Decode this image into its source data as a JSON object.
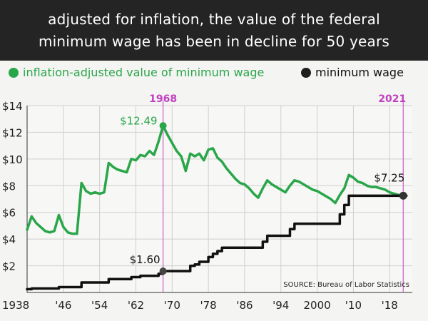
{
  "title_lines": [
    "adjusted for inflation, the value of the federal",
    "minimum wage has been in decline for 50 years"
  ],
  "legend": [
    {
      "label": "inflation-adjusted value of minimum wage",
      "color": "#2aa64a"
    },
    {
      "label": "minimum wage",
      "color": "#1e1e1e"
    }
  ],
  "colors": {
    "green": "#2aa64a",
    "black": "#111111",
    "marker_line": "#d070d0",
    "marker_text": "#c040c0",
    "grid": "#cfcfcf"
  },
  "source": "SOURCE: Bureau of Labor Statistics",
  "chart_data": {
    "type": "line",
    "xlim": [
      1938,
      2023
    ],
    "ylim": [
      0,
      14
    ],
    "y_ticks": [
      2,
      4,
      6,
      8,
      10,
      12,
      14
    ],
    "y_tick_labels": [
      "$2",
      "$4",
      "$6",
      "$8",
      "$10",
      "$12",
      "$14"
    ],
    "x_ticks": [
      1938,
      1946,
      1954,
      1962,
      1970,
      1978,
      1986,
      1994,
      2002,
      2010,
      2018
    ],
    "x_tick_labels": [
      "1938",
      "'46",
      "'54",
      "'62",
      "'70",
      "'78",
      "'86",
      "'94",
      "2000",
      "'10",
      "'18"
    ],
    "grid": true,
    "series": [
      {
        "name": "inflation-adjusted value of minimum wage",
        "color": "#2aa64a",
        "points": [
          [
            1938,
            4.7
          ],
          [
            1939,
            5.7
          ],
          [
            1940,
            5.2
          ],
          [
            1941,
            4.9
          ],
          [
            1942,
            4.6
          ],
          [
            1943,
            4.5
          ],
          [
            1944,
            4.6
          ],
          [
            1945,
            5.8
          ],
          [
            1946,
            4.9
          ],
          [
            1947,
            4.5
          ],
          [
            1948,
            4.4
          ],
          [
            1949,
            4.4
          ],
          [
            1950,
            8.2
          ],
          [
            1951,
            7.6
          ],
          [
            1952,
            7.4
          ],
          [
            1953,
            7.5
          ],
          [
            1954,
            7.4
          ],
          [
            1955,
            7.5
          ],
          [
            1956,
            9.7
          ],
          [
            1957,
            9.4
          ],
          [
            1958,
            9.2
          ],
          [
            1959,
            9.1
          ],
          [
            1960,
            9.0
          ],
          [
            1961,
            10.0
          ],
          [
            1962,
            9.9
          ],
          [
            1963,
            10.3
          ],
          [
            1964,
            10.2
          ],
          [
            1965,
            10.6
          ],
          [
            1966,
            10.3
          ],
          [
            1967,
            11.3
          ],
          [
            1968,
            12.49
          ],
          [
            1969,
            11.8
          ],
          [
            1970,
            11.2
          ],
          [
            1971,
            10.6
          ],
          [
            1972,
            10.2
          ],
          [
            1973,
            9.1
          ],
          [
            1974,
            10.4
          ],
          [
            1975,
            10.2
          ],
          [
            1976,
            10.4
          ],
          [
            1977,
            9.9
          ],
          [
            1978,
            10.7
          ],
          [
            1979,
            10.8
          ],
          [
            1980,
            10.1
          ],
          [
            1981,
            9.8
          ],
          [
            1982,
            9.3
          ],
          [
            1983,
            8.9
          ],
          [
            1984,
            8.5
          ],
          [
            1985,
            8.2
          ],
          [
            1986,
            8.1
          ],
          [
            1987,
            7.8
          ],
          [
            1988,
            7.4
          ],
          [
            1989,
            7.1
          ],
          [
            1990,
            7.8
          ],
          [
            1991,
            8.4
          ],
          [
            1992,
            8.1
          ],
          [
            1993,
            7.9
          ],
          [
            1994,
            7.7
          ],
          [
            1995,
            7.5
          ],
          [
            1996,
            8.0
          ],
          [
            1997,
            8.4
          ],
          [
            1998,
            8.3
          ],
          [
            1999,
            8.1
          ],
          [
            2000,
            7.9
          ],
          [
            2001,
            7.7
          ],
          [
            2002,
            7.6
          ],
          [
            2003,
            7.4
          ],
          [
            2004,
            7.2
          ],
          [
            2005,
            7.0
          ],
          [
            2006,
            6.7
          ],
          [
            2007,
            7.3
          ],
          [
            2008,
            7.8
          ],
          [
            2009,
            8.8
          ],
          [
            2010,
            8.6
          ],
          [
            2011,
            8.3
          ],
          [
            2012,
            8.2
          ],
          [
            2013,
            8.0
          ],
          [
            2014,
            7.9
          ],
          [
            2015,
            7.9
          ],
          [
            2016,
            7.8
          ],
          [
            2017,
            7.7
          ],
          [
            2018,
            7.5
          ],
          [
            2019,
            7.4
          ],
          [
            2020,
            7.3
          ],
          [
            2021,
            7.25
          ]
        ]
      },
      {
        "name": "minimum wage",
        "color": "#111111",
        "points": [
          [
            1938,
            0.25
          ],
          [
            1939,
            0.3
          ],
          [
            1945,
            0.4
          ],
          [
            1950,
            0.75
          ],
          [
            1956,
            1.0
          ],
          [
            1961,
            1.15
          ],
          [
            1963,
            1.25
          ],
          [
            1967,
            1.4
          ],
          [
            1968,
            1.6
          ],
          [
            1974,
            2.0
          ],
          [
            1975,
            2.1
          ],
          [
            1976,
            2.3
          ],
          [
            1978,
            2.65
          ],
          [
            1979,
            2.9
          ],
          [
            1980,
            3.1
          ],
          [
            1981,
            3.35
          ],
          [
            1990,
            3.8
          ],
          [
            1991,
            4.25
          ],
          [
            1996,
            4.75
          ],
          [
            1997,
            5.15
          ],
          [
            2007,
            5.85
          ],
          [
            2008,
            6.55
          ],
          [
            2009,
            7.25
          ],
          [
            2021,
            7.25
          ]
        ]
      }
    ],
    "annotations": [
      {
        "x": 1968,
        "label": "1968"
      },
      {
        "x": 2021,
        "label": "2021"
      }
    ],
    "data_labels": [
      {
        "text": "$12.49",
        "x": 1968,
        "y": 12.49,
        "series": "inflation-adjusted value of minimum wage"
      },
      {
        "text": "$1.60",
        "x": 1968,
        "y": 1.6,
        "series": "minimum wage"
      },
      {
        "text": "$7.25",
        "x": 2021,
        "y": 7.25,
        "series": "minimum wage"
      }
    ]
  }
}
